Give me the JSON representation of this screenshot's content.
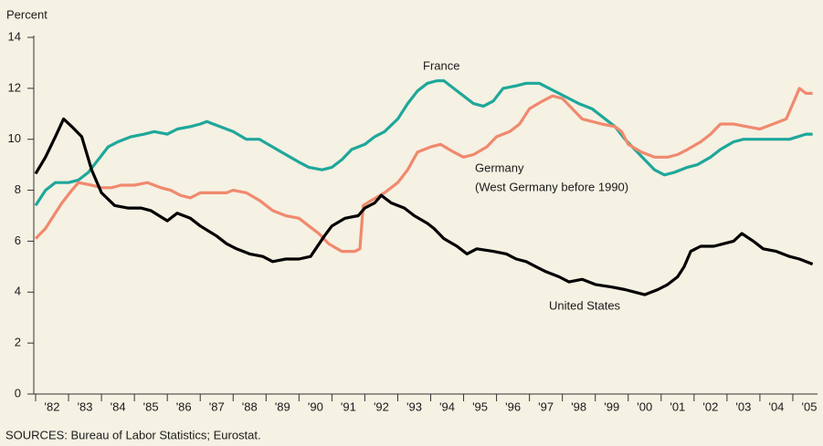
{
  "chart_data": {
    "type": "line",
    "ylabel": "Percent",
    "source": "SOURCES: Bureau of Labor Statistics; Eurostat.",
    "annotations": [
      "(West Germany before 1990)"
    ],
    "xlim": [
      1982,
      2005.75
    ],
    "xticks": [
      {
        "value": 1982,
        "label": "'82"
      },
      {
        "value": 1983,
        "label": "'83"
      },
      {
        "value": 1984,
        "label": "'84"
      },
      {
        "value": 1985,
        "label": "'85"
      },
      {
        "value": 1986,
        "label": "'86"
      },
      {
        "value": 1987,
        "label": "'87"
      },
      {
        "value": 1988,
        "label": "'88"
      },
      {
        "value": 1989,
        "label": "'89"
      },
      {
        "value": 1990,
        "label": "'90"
      },
      {
        "value": 1991,
        "label": "'91"
      },
      {
        "value": 1992,
        "label": "'92"
      },
      {
        "value": 1993,
        "label": "'93"
      },
      {
        "value": 1994,
        "label": "'94"
      },
      {
        "value": 1995,
        "label": "'95"
      },
      {
        "value": 1996,
        "label": "'96"
      },
      {
        "value": 1997,
        "label": "'97"
      },
      {
        "value": 1998,
        "label": "'98"
      },
      {
        "value": 1999,
        "label": "'99"
      },
      {
        "value": 2000,
        "label": "'00"
      },
      {
        "value": 2001,
        "label": "'01"
      },
      {
        "value": 2002,
        "label": "'02"
      },
      {
        "value": 2003,
        "label": "'03"
      },
      {
        "value": 2004,
        "label": "'04"
      },
      {
        "value": 2005,
        "label": "'05"
      }
    ],
    "ylim": [
      0,
      14
    ],
    "yticks": [
      0,
      2,
      4,
      6,
      8,
      10,
      12,
      14
    ],
    "series": [
      {
        "name": "France",
        "color": "#1fa79b",
        "x": [
          1982.0,
          1982.3,
          1982.6,
          1983.0,
          1983.3,
          1983.6,
          1983.9,
          1984.2,
          1984.5,
          1984.9,
          1985.3,
          1985.6,
          1986.0,
          1986.3,
          1986.7,
          1987.0,
          1987.2,
          1987.6,
          1988.0,
          1988.4,
          1988.8,
          1989.2,
          1989.6,
          1990.0,
          1990.3,
          1990.7,
          1991.0,
          1991.3,
          1991.6,
          1992.0,
          1992.3,
          1992.6,
          1993.0,
          1993.3,
          1993.6,
          1993.9,
          1994.2,
          1994.4,
          1994.7,
          1995.0,
          1995.3,
          1995.6,
          1995.9,
          1996.2,
          1996.6,
          1996.9,
          1997.3,
          1997.6,
          1997.9,
          1998.2,
          1998.5,
          1998.9,
          1999.2,
          1999.6,
          1999.9,
          2000.2,
          2000.5,
          2000.8,
          2001.1,
          2001.4,
          2001.8,
          2002.1,
          2002.5,
          2002.8,
          2003.2,
          2003.5,
          2004.0,
          2004.5,
          2004.9,
          2005.4,
          2005.6
        ],
        "values": [
          7.4,
          8.0,
          8.3,
          8.3,
          8.4,
          8.7,
          9.2,
          9.7,
          9.9,
          10.1,
          10.2,
          10.3,
          10.2,
          10.4,
          10.5,
          10.6,
          10.7,
          10.5,
          10.3,
          10.0,
          10.0,
          9.7,
          9.4,
          9.1,
          8.9,
          8.8,
          8.9,
          9.2,
          9.6,
          9.8,
          10.1,
          10.3,
          10.8,
          11.4,
          11.9,
          12.2,
          12.3,
          12.3,
          12.0,
          11.7,
          11.4,
          11.3,
          11.5,
          12.0,
          12.1,
          12.2,
          12.2,
          12.0,
          11.8,
          11.6,
          11.4,
          11.2,
          10.9,
          10.5,
          10.0,
          9.6,
          9.2,
          8.8,
          8.6,
          8.7,
          8.9,
          9.0,
          9.3,
          9.6,
          9.9,
          10.0,
          10.0,
          10.0,
          10.0,
          10.2,
          10.2
        ]
      },
      {
        "name": "Germany",
        "color": "#f0896e",
        "x": [
          1982.0,
          1982.3,
          1982.5,
          1982.8,
          1983.1,
          1983.3,
          1983.7,
          1984.0,
          1984.3,
          1984.6,
          1985.0,
          1985.4,
          1985.8,
          1986.1,
          1986.4,
          1986.7,
          1987.0,
          1987.4,
          1987.8,
          1988.0,
          1988.4,
          1988.8,
          1989.2,
          1989.6,
          1990.0,
          1990.3,
          1990.6,
          1990.9,
          1991.3,
          1991.7,
          1991.85,
          1991.95,
          1992.2,
          1992.6,
          1993.0,
          1993.3,
          1993.6,
          1994.0,
          1994.3,
          1994.7,
          1995.0,
          1995.3,
          1995.7,
          1996.0,
          1996.4,
          1996.7,
          1997.0,
          1997.4,
          1997.7,
          1998.0,
          1998.3,
          1998.6,
          1998.9,
          1999.2,
          1999.6,
          1999.8,
          2000.0,
          2000.4,
          2000.8,
          2001.2,
          2001.5,
          2001.8,
          2002.2,
          2002.5,
          2002.8,
          2003.2,
          2003.6,
          2004.0,
          2004.4,
          2004.8,
          2005.2,
          2005.4,
          2005.6
        ],
        "values": [
          6.1,
          6.5,
          6.9,
          7.5,
          8.0,
          8.3,
          8.2,
          8.1,
          8.1,
          8.2,
          8.2,
          8.3,
          8.1,
          8.0,
          7.8,
          7.7,
          7.9,
          7.9,
          7.9,
          8.0,
          7.9,
          7.6,
          7.2,
          7.0,
          6.9,
          6.6,
          6.3,
          5.9,
          5.6,
          5.6,
          5.7,
          7.4,
          7.6,
          7.9,
          8.3,
          8.8,
          9.5,
          9.7,
          9.8,
          9.5,
          9.3,
          9.4,
          9.7,
          10.1,
          10.3,
          10.6,
          11.2,
          11.5,
          11.7,
          11.6,
          11.2,
          10.8,
          10.7,
          10.6,
          10.5,
          10.3,
          9.8,
          9.5,
          9.3,
          9.3,
          9.4,
          9.6,
          9.9,
          10.2,
          10.6,
          10.6,
          10.5,
          10.4,
          10.6,
          10.8,
          12.0,
          11.8,
          11.8
        ]
      },
      {
        "name": "United States",
        "color": "#000000",
        "x": [
          1982.0,
          1982.3,
          1982.6,
          1982.85,
          1983.1,
          1983.4,
          1983.7,
          1984.0,
          1984.4,
          1984.8,
          1985.2,
          1985.5,
          1986.0,
          1986.3,
          1986.7,
          1987.0,
          1987.5,
          1987.8,
          1988.1,
          1988.5,
          1988.9,
          1989.2,
          1989.6,
          1990.0,
          1990.35,
          1990.77,
          1991.0,
          1991.4,
          1991.8,
          1992.0,
          1992.3,
          1992.5,
          1992.8,
          1993.2,
          1993.5,
          1993.9,
          1994.1,
          1994.4,
          1994.8,
          1995.1,
          1995.4,
          1995.9,
          1996.3,
          1996.6,
          1996.9,
          1997.2,
          1997.5,
          1997.9,
          1998.2,
          1998.6,
          1999.0,
          1999.5,
          1999.9,
          2000.2,
          2000.5,
          2000.9,
          2001.2,
          2001.5,
          2001.7,
          2001.9,
          2002.2,
          2002.6,
          2002.9,
          2003.2,
          2003.45,
          2003.8,
          2004.1,
          2004.5,
          2004.9,
          2005.2,
          2005.6
        ],
        "values": [
          8.65,
          9.3,
          10.1,
          10.8,
          10.5,
          10.1,
          8.8,
          7.9,
          7.4,
          7.3,
          7.3,
          7.2,
          6.8,
          7.1,
          6.9,
          6.6,
          6.2,
          5.9,
          5.7,
          5.5,
          5.4,
          5.2,
          5.3,
          5.3,
          5.4,
          6.2,
          6.6,
          6.9,
          7.0,
          7.3,
          7.5,
          7.8,
          7.5,
          7.3,
          7.0,
          6.7,
          6.5,
          6.1,
          5.8,
          5.5,
          5.7,
          5.6,
          5.5,
          5.3,
          5.2,
          5.0,
          4.8,
          4.6,
          4.4,
          4.5,
          4.3,
          4.2,
          4.1,
          4.0,
          3.9,
          4.1,
          4.3,
          4.6,
          5.0,
          5.6,
          5.8,
          5.8,
          5.9,
          6.0,
          6.3,
          6.0,
          5.7,
          5.6,
          5.4,
          5.3,
          5.1
        ]
      }
    ]
  }
}
